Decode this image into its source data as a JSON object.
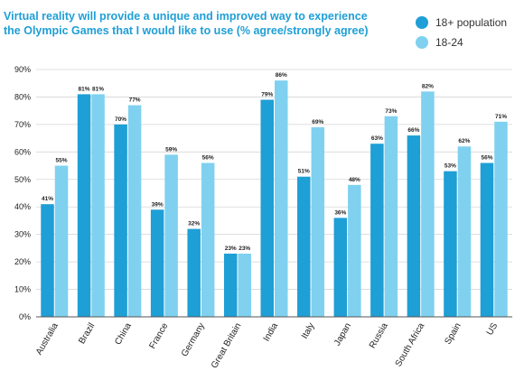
{
  "chart_data": {
    "type": "bar",
    "title": "Virtual reality will provide a unique and improved way to experience the Olympic Games that I would like to use (% agree/strongly agree)",
    "categories": [
      "Australia",
      "Brazil",
      "China",
      "France",
      "Germany",
      "Great Britain",
      "India",
      "Italy",
      "Japan",
      "Russia",
      "South Africa",
      "Spain",
      "US"
    ],
    "series": [
      {
        "name": "18+ population",
        "color": "#1e9fd6",
        "values": [
          41,
          81,
          70,
          39,
          32,
          23,
          79,
          51,
          36,
          63,
          66,
          53,
          56
        ]
      },
      {
        "name": "18-24",
        "color": "#7fd1ef",
        "values": [
          55,
          81,
          77,
          59,
          56,
          23,
          86,
          69,
          48,
          73,
          82,
          62,
          71
        ]
      }
    ],
    "ylim": [
      0,
      90
    ],
    "yticks": [
      0,
      10,
      20,
      30,
      40,
      50,
      60,
      70,
      80,
      90
    ],
    "ytick_suffix": "%",
    "data_label_suffix": "%",
    "title_color": "#1e9fd6",
    "grid": true,
    "legend_position": "top-right"
  }
}
